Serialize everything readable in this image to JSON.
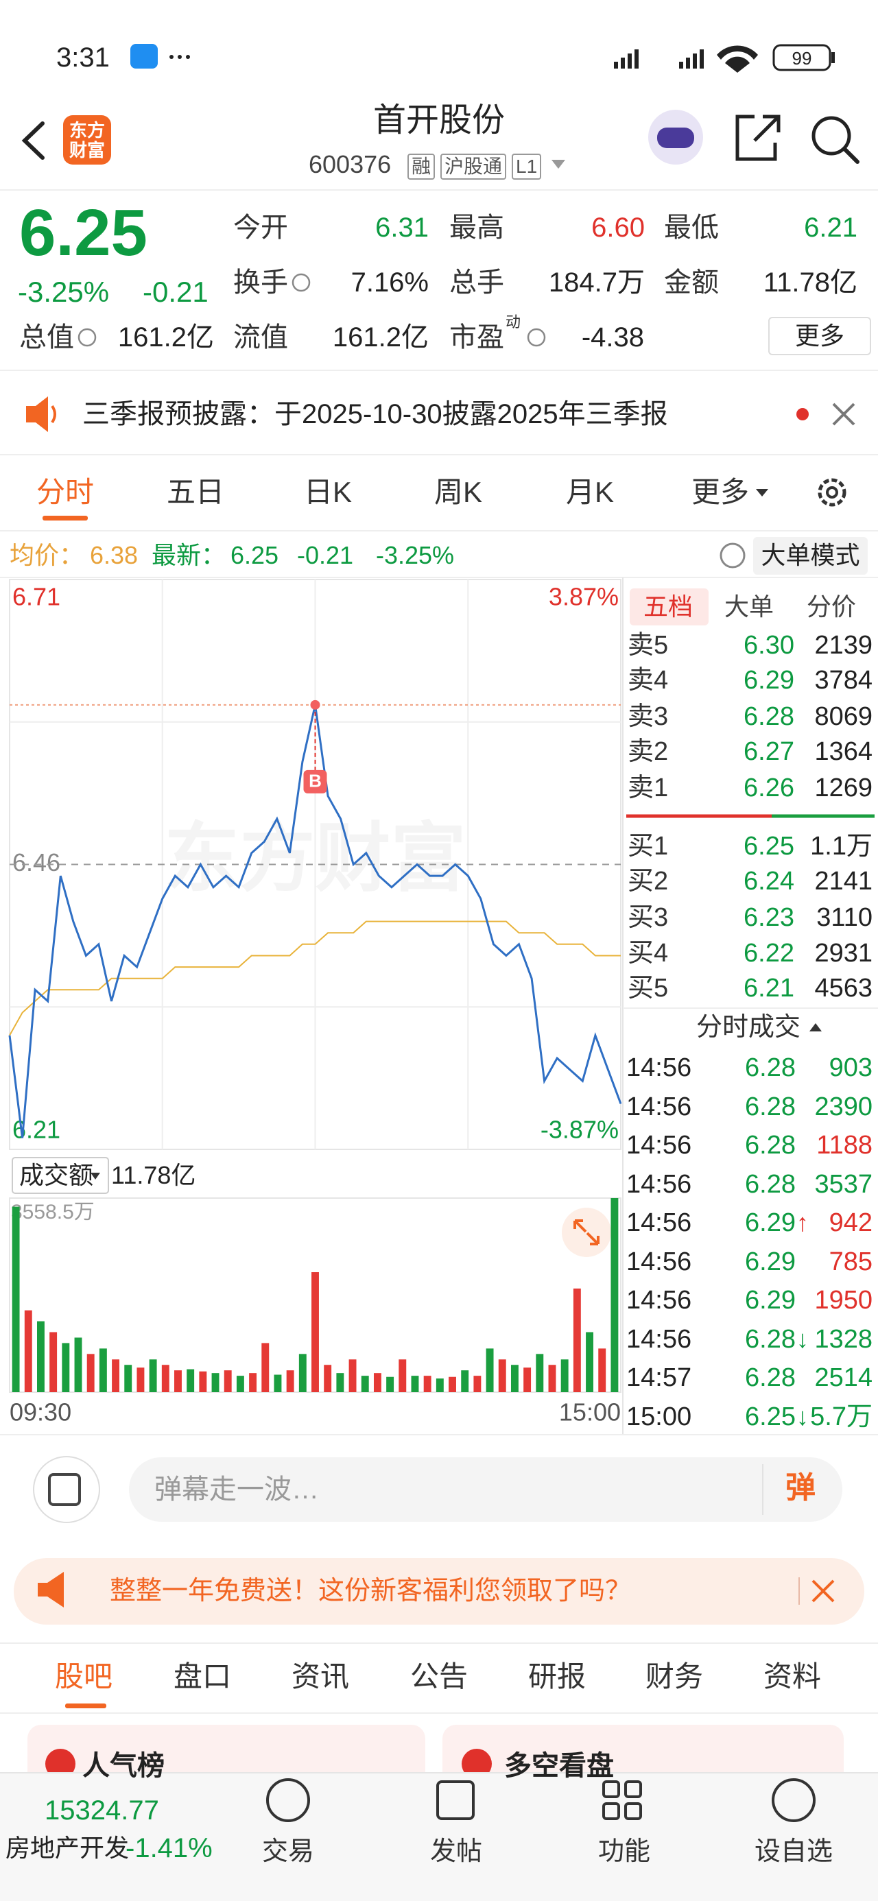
{
  "status_bar": {
    "time": "3:31",
    "battery": "99"
  },
  "header": {
    "logo": "东方财富",
    "title": "首开股份",
    "code": "600376",
    "tags": [
      "融",
      "沪股通",
      "L1"
    ]
  },
  "quote": {
    "price": "6.25",
    "change_pct": "-3.25%",
    "change": "-0.21",
    "color": "#0d9a41",
    "fields": [
      {
        "label": "今开",
        "value": "6.31",
        "color": "#0d9a41"
      },
      {
        "label": "最高",
        "value": "6.60",
        "color": "#e0312b"
      },
      {
        "label": "最低",
        "value": "6.21",
        "color": "#0d9a41"
      },
      {
        "label": "换手",
        "value": "7.16%",
        "color": "#222222"
      },
      {
        "label": "总手",
        "value": "184.7万",
        "color": "#222222"
      },
      {
        "label": "金额",
        "value": "11.78亿",
        "color": "#222222"
      },
      {
        "label": "总值",
        "value": "161.2亿",
        "color": "#222222"
      },
      {
        "label": "流值",
        "value": "161.2亿",
        "color": "#222222"
      },
      {
        "label": "市盈",
        "superscript": "动",
        "value": "-4.38",
        "color": "#222222"
      }
    ],
    "more": "更多"
  },
  "notice": "三季报预披露：于2025-10-30披露2025年三季报",
  "period_tabs": [
    "分时",
    "五日",
    "日K",
    "周K",
    "月K",
    "更多"
  ],
  "mode_button": "大单模式",
  "chart_data": [
    {
      "type": "line",
      "ylim": [
        6.21,
        6.71
      ],
      "yticks": [
        6.71,
        6.46,
        6.21
      ],
      "y2lim": [
        -3.87,
        3.87
      ],
      "y2ticks": [
        {
          "value": 3.87,
          "label": "3.87%"
        },
        {
          "value": -3.87,
          "label": "-3.87%"
        }
      ],
      "grid": true,
      "watermark": "东方财富",
      "marker": "B",
      "series": [
        {
          "name": "最新：",
          "color": "#2f6fc4",
          "last_label": "6.25",
          "change_labels": [
            "-0.21",
            "-3.25%"
          ],
          "label_color": "#0d9a41",
          "values": [
            6.31,
            6.22,
            6.35,
            6.34,
            6.45,
            6.41,
            6.38,
            6.39,
            6.34,
            6.38,
            6.37,
            6.4,
            6.43,
            6.45,
            6.44,
            6.46,
            6.44,
            6.45,
            6.44,
            6.47,
            6.48,
            6.5,
            6.47,
            6.55,
            6.6,
            6.52,
            6.5,
            6.46,
            6.47,
            6.45,
            6.44,
            6.45,
            6.46,
            6.45,
            6.45,
            6.46,
            6.45,
            6.43,
            6.39,
            6.38,
            6.39,
            6.36,
            6.27,
            6.29,
            6.28,
            6.27,
            6.31,
            6.28,
            6.25
          ]
        },
        {
          "name": "均价：",
          "color": "#e8b33a",
          "last_label": "6.38",
          "label_color": "#e8a23a",
          "values": [
            6.31,
            6.33,
            6.34,
            6.35,
            6.35,
            6.35,
            6.35,
            6.35,
            6.36,
            6.36,
            6.36,
            6.36,
            6.36,
            6.37,
            6.37,
            6.37,
            6.37,
            6.37,
            6.37,
            6.38,
            6.38,
            6.38,
            6.38,
            6.39,
            6.39,
            6.4,
            6.4,
            6.4,
            6.41,
            6.41,
            6.41,
            6.41,
            6.41,
            6.41,
            6.41,
            6.41,
            6.41,
            6.41,
            6.41,
            6.41,
            6.4,
            6.4,
            6.4,
            6.39,
            6.39,
            6.39,
            6.38,
            6.38,
            6.38
          ]
        }
      ]
    },
    {
      "type": "bar",
      "title": "成交额",
      "subtitle": "11.78亿",
      "ylim": [
        0,
        3558.5
      ],
      "yticks": [
        {
          "value": 3558.5,
          "label": "3558.5万"
        }
      ],
      "categories": [
        "09:30",
        null,
        null,
        null,
        null,
        null,
        null,
        null,
        null,
        null,
        null,
        null,
        null,
        null,
        null,
        null,
        null,
        null,
        null,
        null,
        null,
        null,
        null,
        null,
        null,
        null,
        null,
        null,
        null,
        null,
        null,
        null,
        null,
        null,
        null,
        null,
        null,
        null,
        null,
        null,
        null,
        null,
        null,
        null,
        null,
        null,
        null,
        null,
        "15:00"
      ],
      "series": [
        {
          "color": "#e53935",
          "values": [
            null,
            1500,
            null,
            1100,
            null,
            null,
            700,
            null,
            600,
            null,
            450,
            null,
            500,
            400,
            null,
            380,
            null,
            400,
            null,
            350,
            900,
            null,
            400,
            null,
            2200,
            500,
            null,
            600,
            null,
            350,
            null,
            600,
            null,
            300,
            null,
            280,
            null,
            300,
            null,
            600,
            null,
            450,
            null,
            500,
            null,
            1900,
            null,
            800,
            null
          ]
        },
        {
          "color": "#1a9e3f",
          "values": [
            3400,
            null,
            1300,
            null,
            900,
            1000,
            null,
            800,
            null,
            500,
            null,
            600,
            null,
            null,
            420,
            null,
            350,
            null,
            300,
            null,
            null,
            320,
            null,
            700,
            null,
            null,
            350,
            null,
            300,
            null,
            280,
            null,
            300,
            null,
            250,
            null,
            400,
            null,
            800,
            null,
            500,
            null,
            700,
            null,
            600,
            null,
            1100,
            null,
            3558.5
          ]
        }
      ]
    }
  ],
  "order_book": {
    "tabs": [
      "五档",
      "大单",
      "分价"
    ],
    "asks": [
      [
        "卖5",
        "6.30",
        "2139"
      ],
      [
        "卖4",
        "6.29",
        "3784"
      ],
      [
        "卖3",
        "6.28",
        "8069"
      ],
      [
        "卖2",
        "6.27",
        "1364"
      ],
      [
        "卖1",
        "6.26",
        "1269"
      ]
    ],
    "bids": [
      [
        "买1",
        "6.25",
        "1.1万"
      ],
      [
        "买2",
        "6.24",
        "2141"
      ],
      [
        "买3",
        "6.23",
        "3110"
      ],
      [
        "买4",
        "6.22",
        "2931"
      ],
      [
        "买5",
        "6.21",
        "4563"
      ]
    ]
  },
  "trades": {
    "title": "分时成交",
    "rows": [
      {
        "time": "14:56",
        "price": "6.28",
        "volume": "903",
        "color": "#0d9a41"
      },
      {
        "time": "14:56",
        "price": "6.28",
        "volume": "2390",
        "color": "#0d9a41"
      },
      {
        "time": "14:56",
        "price": "6.28",
        "volume": "1188",
        "color": "#e0312b"
      },
      {
        "time": "14:56",
        "price": "6.28",
        "volume": "3537",
        "color": "#0d9a41"
      },
      {
        "time": "14:56",
        "price": "6.29",
        "flag": "↑",
        "volume": "942",
        "color": "#e0312b"
      },
      {
        "time": "14:56",
        "price": "6.29",
        "volume": "785",
        "color": "#e0312b"
      },
      {
        "time": "14:56",
        "price": "6.29",
        "volume": "1950",
        "color": "#e0312b"
      },
      {
        "time": "14:56",
        "price": "6.28",
        "flag": "↓",
        "volume": "1328",
        "color": "#0d9a41"
      },
      {
        "time": "14:57",
        "price": "6.28",
        "volume": "2514",
        "color": "#0d9a41"
      },
      {
        "time": "15:00",
        "price": "6.25",
        "flag": "↓",
        "volume": "5.7万",
        "color": "#0d9a41"
      }
    ]
  },
  "comment_bar": {
    "placeholder": "弹幕走一波…",
    "button": "弹"
  },
  "promo": "整整一年免费送！这份新客福利您领取了吗？",
  "content_tabs": [
    "股吧",
    "盘口",
    "资讯",
    "公告",
    "研报",
    "财务",
    "资料"
  ],
  "cards": [
    "人气榜",
    "多空看盘"
  ],
  "bottom_bar": {
    "index_value": "15324.77",
    "sector": "房地产开发",
    "sector_change": "-1.41%",
    "nav": [
      "交易",
      "发帖",
      "功能",
      "设自选"
    ]
  }
}
